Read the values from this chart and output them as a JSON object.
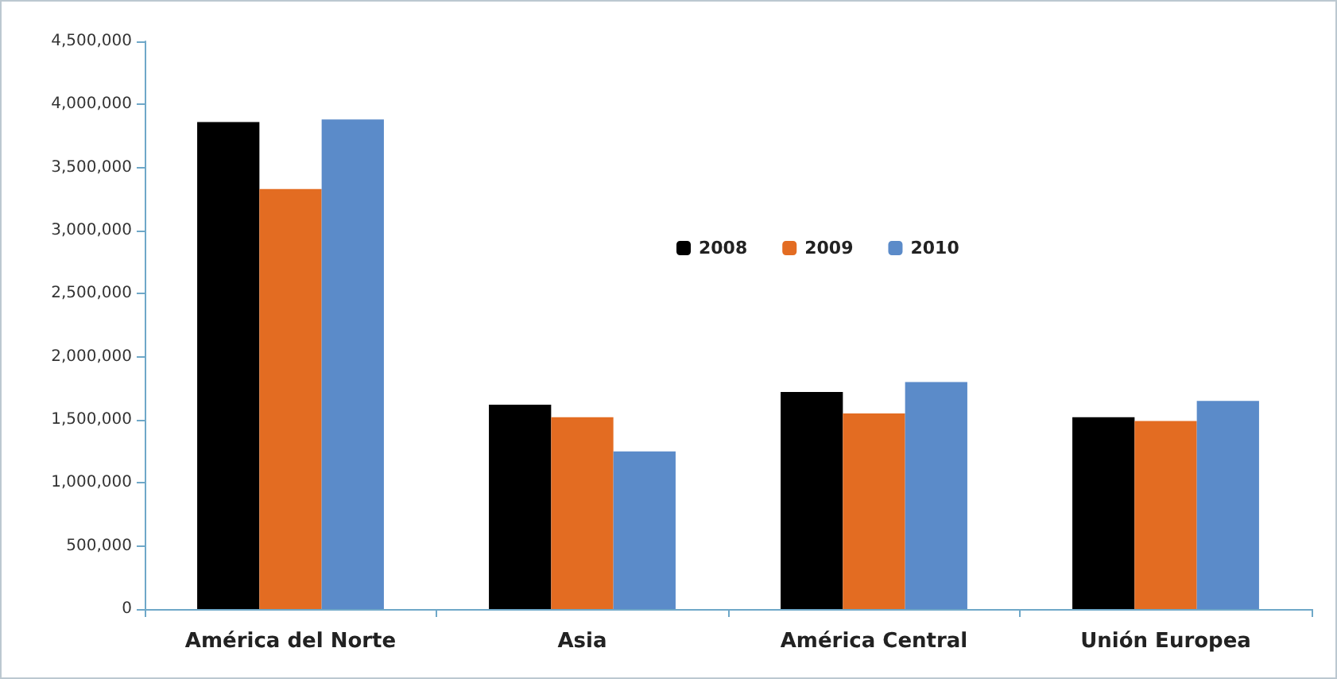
{
  "chart_data": {
    "type": "bar",
    "categories": [
      "América del Norte",
      "Asia",
      "América Central",
      "Unión Europea"
    ],
    "series": [
      {
        "name": "2008",
        "color": "#000000",
        "values": [
          3860000,
          1620000,
          1720000,
          1520000
        ]
      },
      {
        "name": "2009",
        "color": "#e36c22",
        "values": [
          3330000,
          1520000,
          1550000,
          1490000
        ]
      },
      {
        "name": "2010",
        "color": "#5b8bc9",
        "values": [
          3880000,
          1250000,
          1800000,
          1650000
        ]
      }
    ],
    "ylim": [
      0,
      4500000
    ],
    "yticks": [
      0,
      {
        "value": 500000,
        "label": "500,000"
      },
      {
        "value": 1000000,
        "label": "1,000,000"
      },
      {
        "value": 1500000,
        "label": "1,500,000"
      },
      {
        "value": 2000000,
        "label": "2,000,000"
      },
      {
        "value": 2500000,
        "label": "2,500,000"
      },
      {
        "value": 3000000,
        "label": "3,000,000"
      },
      {
        "value": 3500000,
        "label": "3,500,000"
      },
      {
        "value": 4000000,
        "label": "4,000,000"
      },
      {
        "value": 4500000,
        "label": "4,500,000"
      }
    ],
    "grid": false,
    "legend": "top"
  }
}
